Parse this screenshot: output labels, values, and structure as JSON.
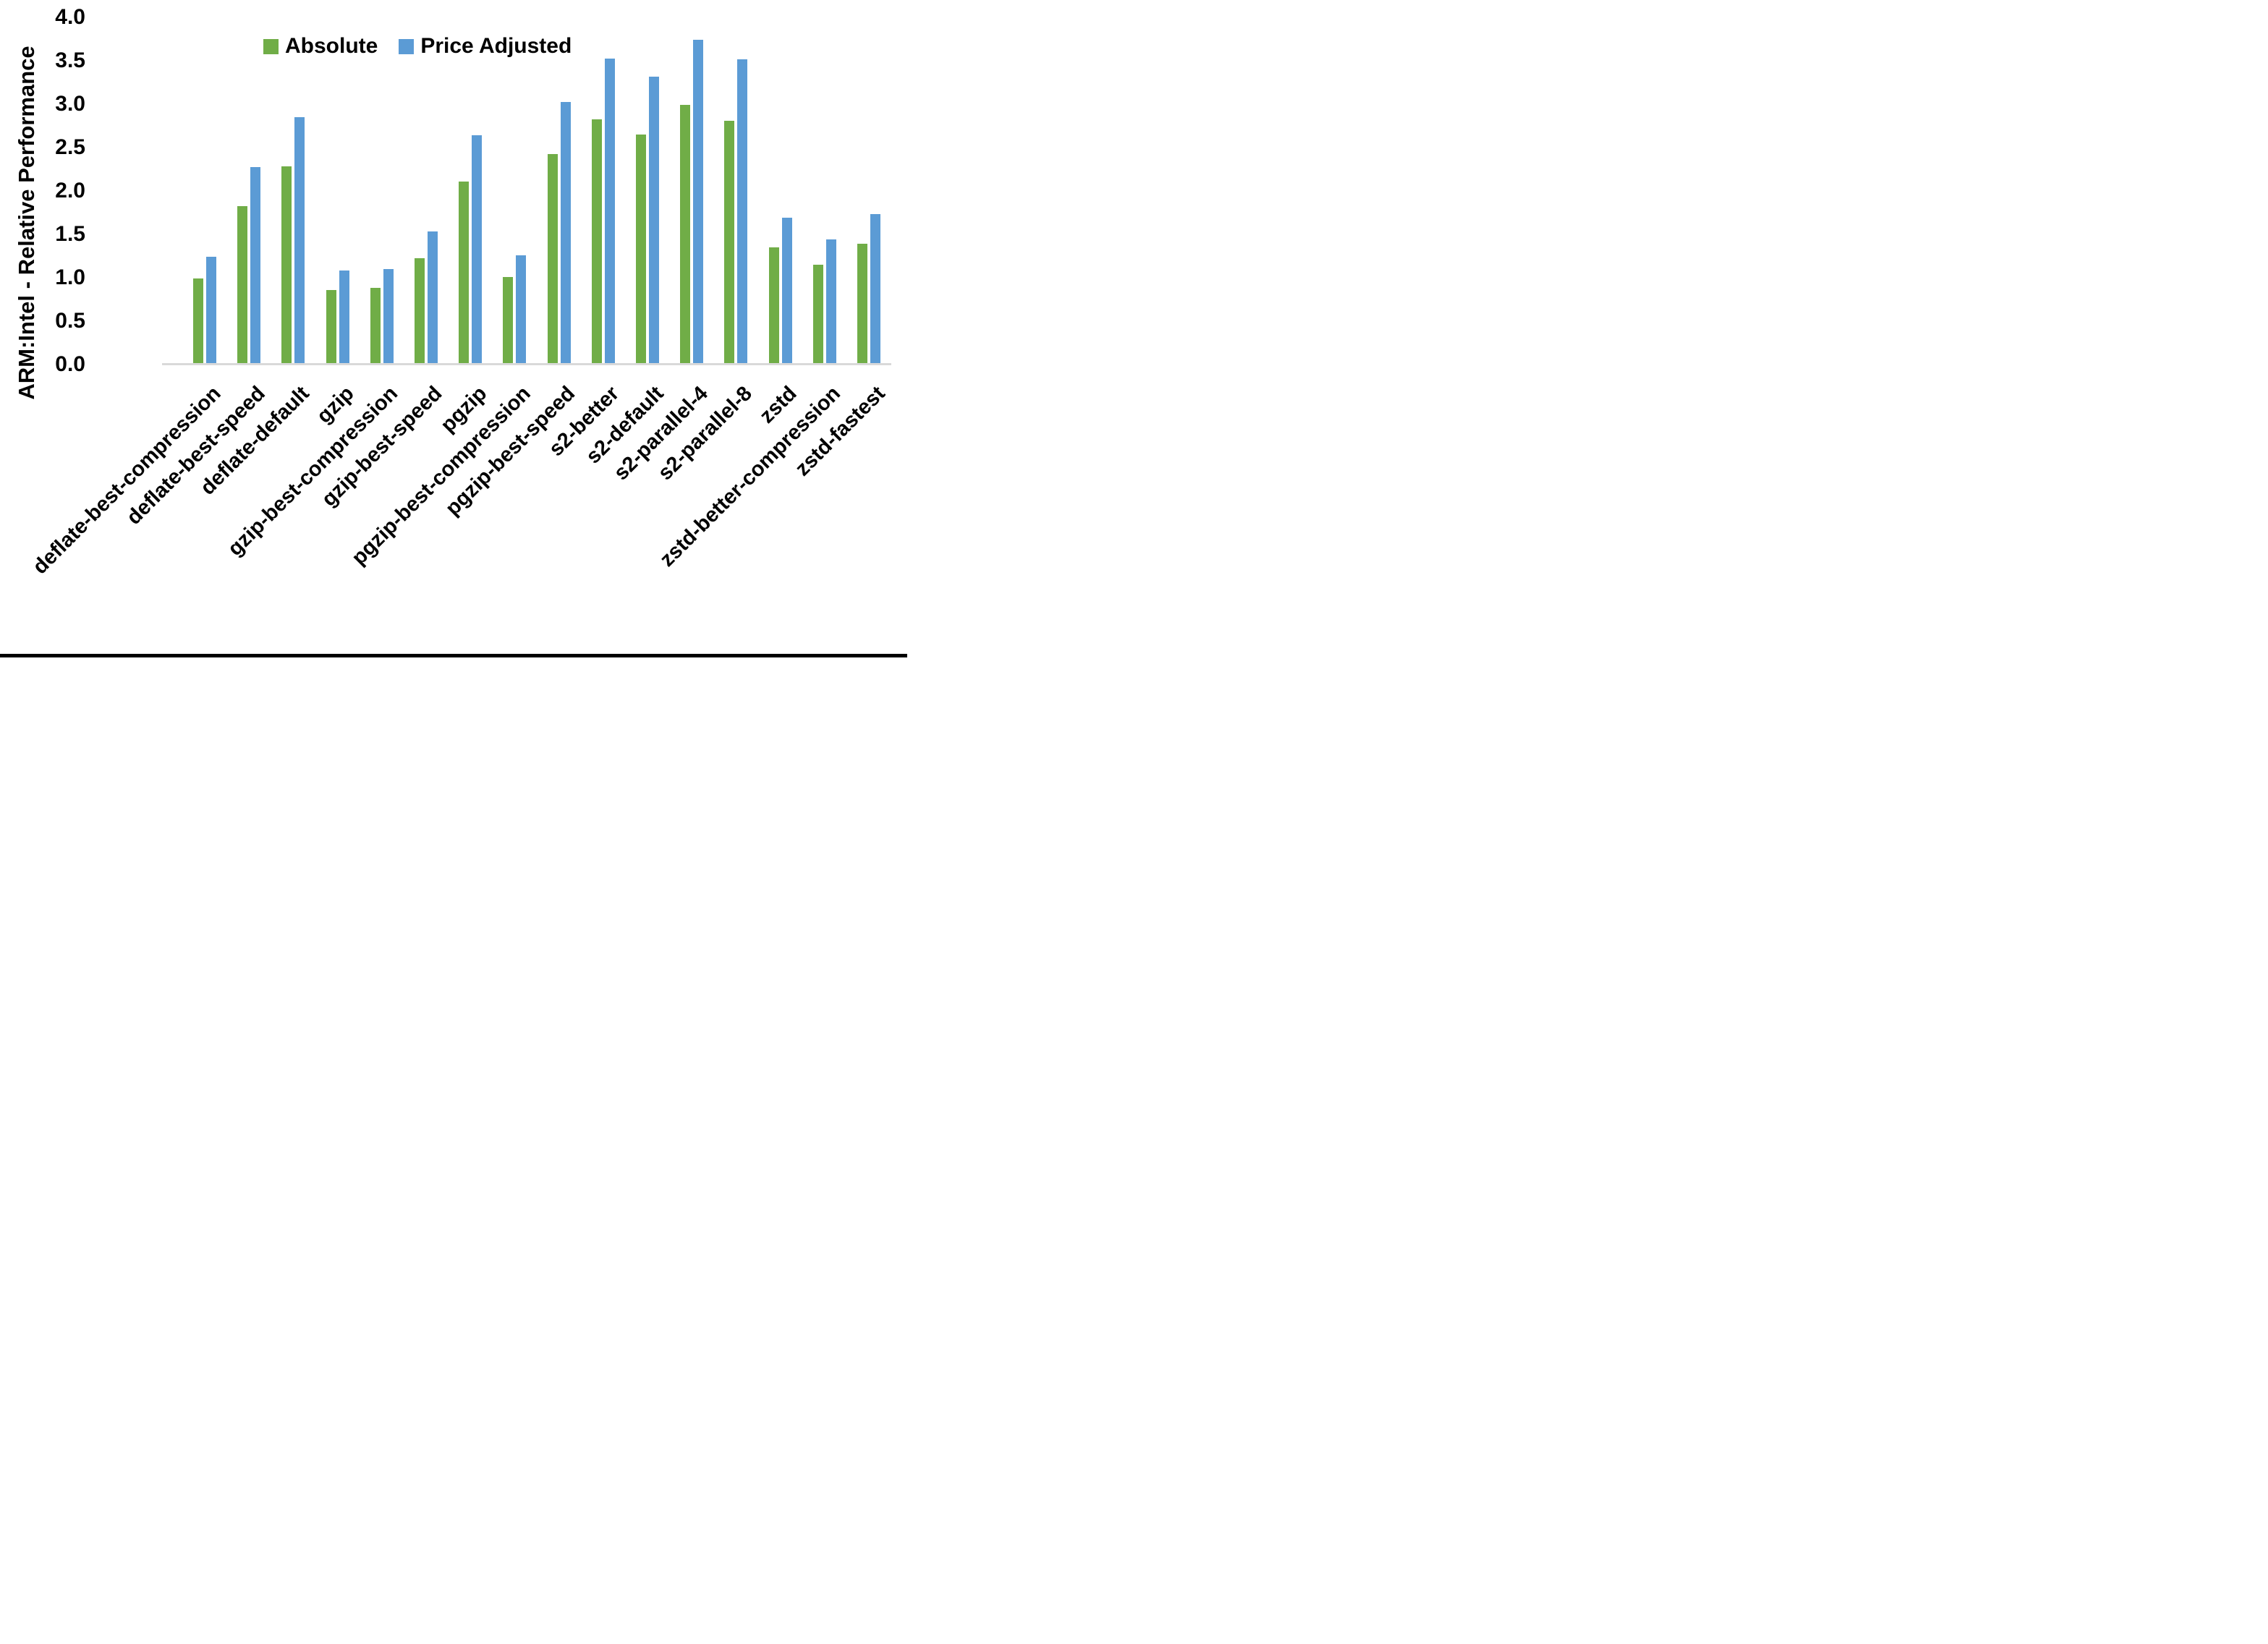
{
  "figure": {
    "background_color": "#ffffff",
    "bottom_border_color": "#000000",
    "axis_line_color": "#d9d9d9"
  },
  "legend": {
    "items": [
      {
        "label": "Absolute",
        "color": "#70AD47"
      },
      {
        "label": "Price Adjusted",
        "color": "#5B9BD5"
      }
    ]
  },
  "chart_data": {
    "type": "bar",
    "title": "",
    "xlabel": "",
    "ylabel": "ARM:Intel - Relative Performance",
    "ylim": [
      0.0,
      4.0
    ],
    "ytick_step": 0.5,
    "ytick_labels": [
      "0.0",
      "0.5",
      "1.0",
      "1.5",
      "2.0",
      "2.5",
      "3.0",
      "3.5",
      "4.0"
    ],
    "grid": false,
    "legend_position": "top-center",
    "categories": [
      "deflate-best-compression",
      "deflate-best-speed",
      "deflate-default",
      "gzip",
      "gzip-best-compression",
      "gzip-best-speed",
      "pgzip",
      "pgzip-best-compression",
      "pgzip-best-speed",
      "s2-better",
      "s2-default",
      "s2-parallel-4",
      "s2-parallel-8",
      "zstd",
      "zstd-better-compression",
      "zstd-fastest"
    ],
    "series": [
      {
        "name": "Absolute",
        "color": "#70AD47",
        "values": [
          0.99,
          1.82,
          2.28,
          0.86,
          0.88,
          1.22,
          2.11,
          1.01,
          2.42,
          2.82,
          2.65,
          2.99,
          2.81,
          1.35,
          1.15,
          1.39
        ]
      },
      {
        "name": "Price Adjusted",
        "color": "#5B9BD5",
        "values": [
          1.24,
          2.27,
          2.85,
          1.08,
          1.1,
          1.53,
          2.64,
          1.26,
          3.02,
          3.52,
          3.31,
          3.74,
          3.51,
          1.69,
          1.44,
          1.73
        ]
      }
    ]
  }
}
